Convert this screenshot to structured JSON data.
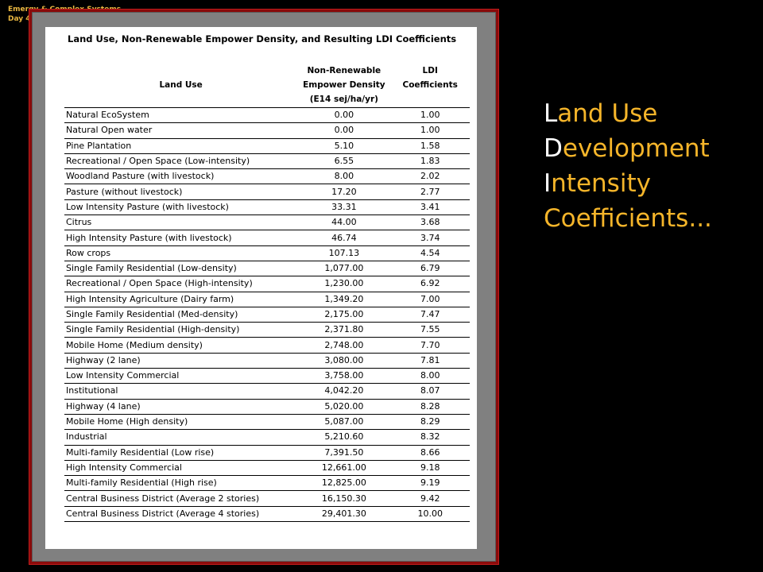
{
  "corner": {
    "line1": "Emergy & Complex Systems",
    "line2": "Day 4"
  },
  "table": {
    "title": "Land Use, Non-Renewable Empower Density, and Resulting LDI Coefficients",
    "headers": {
      "land_use": "Land Use",
      "density_line1": "Non-Renewable",
      "density_line2": "Empower Density",
      "density_line3": "(E14 sej/ha/yr)",
      "ldi_line1": "LDI",
      "ldi_line2": "Coefficients"
    },
    "rows": [
      {
        "land_use": "Natural EcoSystem",
        "density": "0.00",
        "ldi": "1.00"
      },
      {
        "land_use": "Natural Open water",
        "density": "0.00",
        "ldi": "1.00"
      },
      {
        "land_use": "Pine Plantation",
        "density": "5.10",
        "ldi": "1.58"
      },
      {
        "land_use": "Recreational / Open Space (Low-intensity)",
        "density": "6.55",
        "ldi": "1.83"
      },
      {
        "land_use": "Woodland Pasture (with livestock)",
        "density": "8.00",
        "ldi": "2.02"
      },
      {
        "land_use": "Pasture (without livestock)",
        "density": "17.20",
        "ldi": "2.77"
      },
      {
        "land_use": "Low Intensity Pasture (with livestock)",
        "density": "33.31",
        "ldi": "3.41"
      },
      {
        "land_use": "Citrus",
        "density": "44.00",
        "ldi": "3.68"
      },
      {
        "land_use": "High Intensity Pasture (with livestock)",
        "density": "46.74",
        "ldi": "3.74"
      },
      {
        "land_use": "Row crops",
        "density": "107.13",
        "ldi": "4.54"
      },
      {
        "land_use": "Single Family Residential (Low-density)",
        "density": "1,077.00",
        "ldi": "6.79"
      },
      {
        "land_use": "Recreational / Open Space (High-intensity)",
        "density": "1,230.00",
        "ldi": "6.92"
      },
      {
        "land_use": "High Intensity Agriculture (Dairy farm)",
        "density": "1,349.20",
        "ldi": "7.00"
      },
      {
        "land_use": "Single Family Residential (Med-density)",
        "density": "2,175.00",
        "ldi": "7.47"
      },
      {
        "land_use": "Single Family Residential (High-density)",
        "density": "2,371.80",
        "ldi": "7.55"
      },
      {
        "land_use": "Mobile Home (Medium density)",
        "density": "2,748.00",
        "ldi": "7.70"
      },
      {
        "land_use": "Highway (2 lane)",
        "density": "3,080.00",
        "ldi": "7.81"
      },
      {
        "land_use": "Low Intensity Commercial",
        "density": "3,758.00",
        "ldi": "8.00"
      },
      {
        "land_use": "Institutional",
        "density": "4,042.20",
        "ldi": "8.07"
      },
      {
        "land_use": "Highway (4 lane)",
        "density": "5,020.00",
        "ldi": "8.28"
      },
      {
        "land_use": "Mobile Home (High density)",
        "density": "5,087.00",
        "ldi": "8.29"
      },
      {
        "land_use": "Industrial",
        "density": "5,210.60",
        "ldi": "8.32"
      },
      {
        "land_use": "Multi-family Residential (Low rise)",
        "density": "7,391.50",
        "ldi": "8.66"
      },
      {
        "land_use": "High Intensity Commercial",
        "density": "12,661.00",
        "ldi": "9.18"
      },
      {
        "land_use": "Multi-family Residential (High rise)",
        "density": "12,825.00",
        "ldi": "9.19"
      },
      {
        "land_use": "Central Business District (Average 2 stories)",
        "density": "16,150.30",
        "ldi": "9.42"
      },
      {
        "land_use": "Central Business District (Average 4 stories)",
        "density": "29,401.30",
        "ldi": "10.00"
      }
    ]
  },
  "heading": {
    "lines": [
      {
        "first": "L",
        "rest": "and Use"
      },
      {
        "first": "D",
        "rest": "evelopment"
      },
      {
        "first": "I",
        "rest": "ntensity"
      },
      {
        "first": "",
        "rest": "Coefficients..."
      }
    ],
    "first_letter_color": "#ffffff",
    "text_color": "#f5b52a"
  },
  "colors": {
    "background": "#000000",
    "frame_border": "#8a0a0a",
    "frame_fill": "#808080",
    "corner_label": "#e8b640"
  }
}
